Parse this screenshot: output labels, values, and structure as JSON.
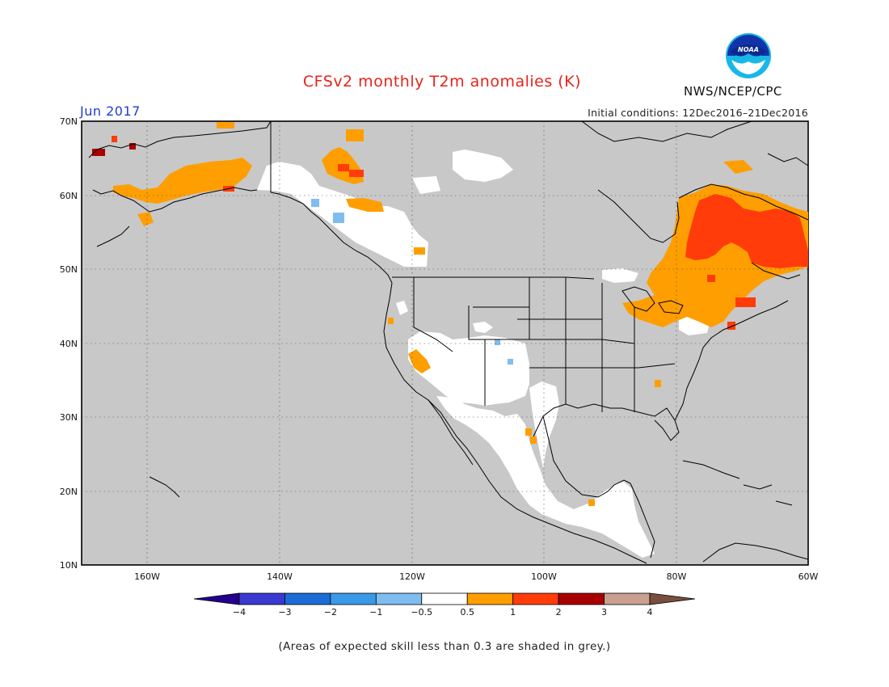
{
  "header": {
    "title": "CFSv2 monthly T2m anomalies (K)",
    "month": "Jun 2017",
    "initial_conditions": "Initial conditions: 12Dec2016–21Dec2016",
    "agency": "NWS/NCEP/CPC",
    "logo_text": "NOAA"
  },
  "map": {
    "lat_labels": [
      "70N",
      "60N",
      "50N",
      "40N",
      "30N",
      "20N",
      "10N"
    ],
    "lon_labels": [
      "160W",
      "140W",
      "120W",
      "100W",
      "80W",
      "60W"
    ],
    "lat_range": [
      10,
      70
    ],
    "lon_range": [
      -170,
      -60
    ],
    "ocean_color": "#c8c8c8",
    "grid": "dotted"
  },
  "colorbar": {
    "labels": [
      "−4",
      "−3",
      "−2",
      "−1",
      "−0.5",
      "0.5",
      "1",
      "2",
      "3",
      "4"
    ],
    "colors": [
      "#24008c",
      "#3a3ad1",
      "#1c6cd6",
      "#3b9ae8",
      "#7fbdf0",
      "#ffffff",
      "#ff9e00",
      "#ff3c0a",
      "#a80000",
      "#c9a090",
      "#7a4e3e"
    ]
  },
  "footnote": "(Areas of expected skill less than 0.3 are shaded in grey.)"
}
